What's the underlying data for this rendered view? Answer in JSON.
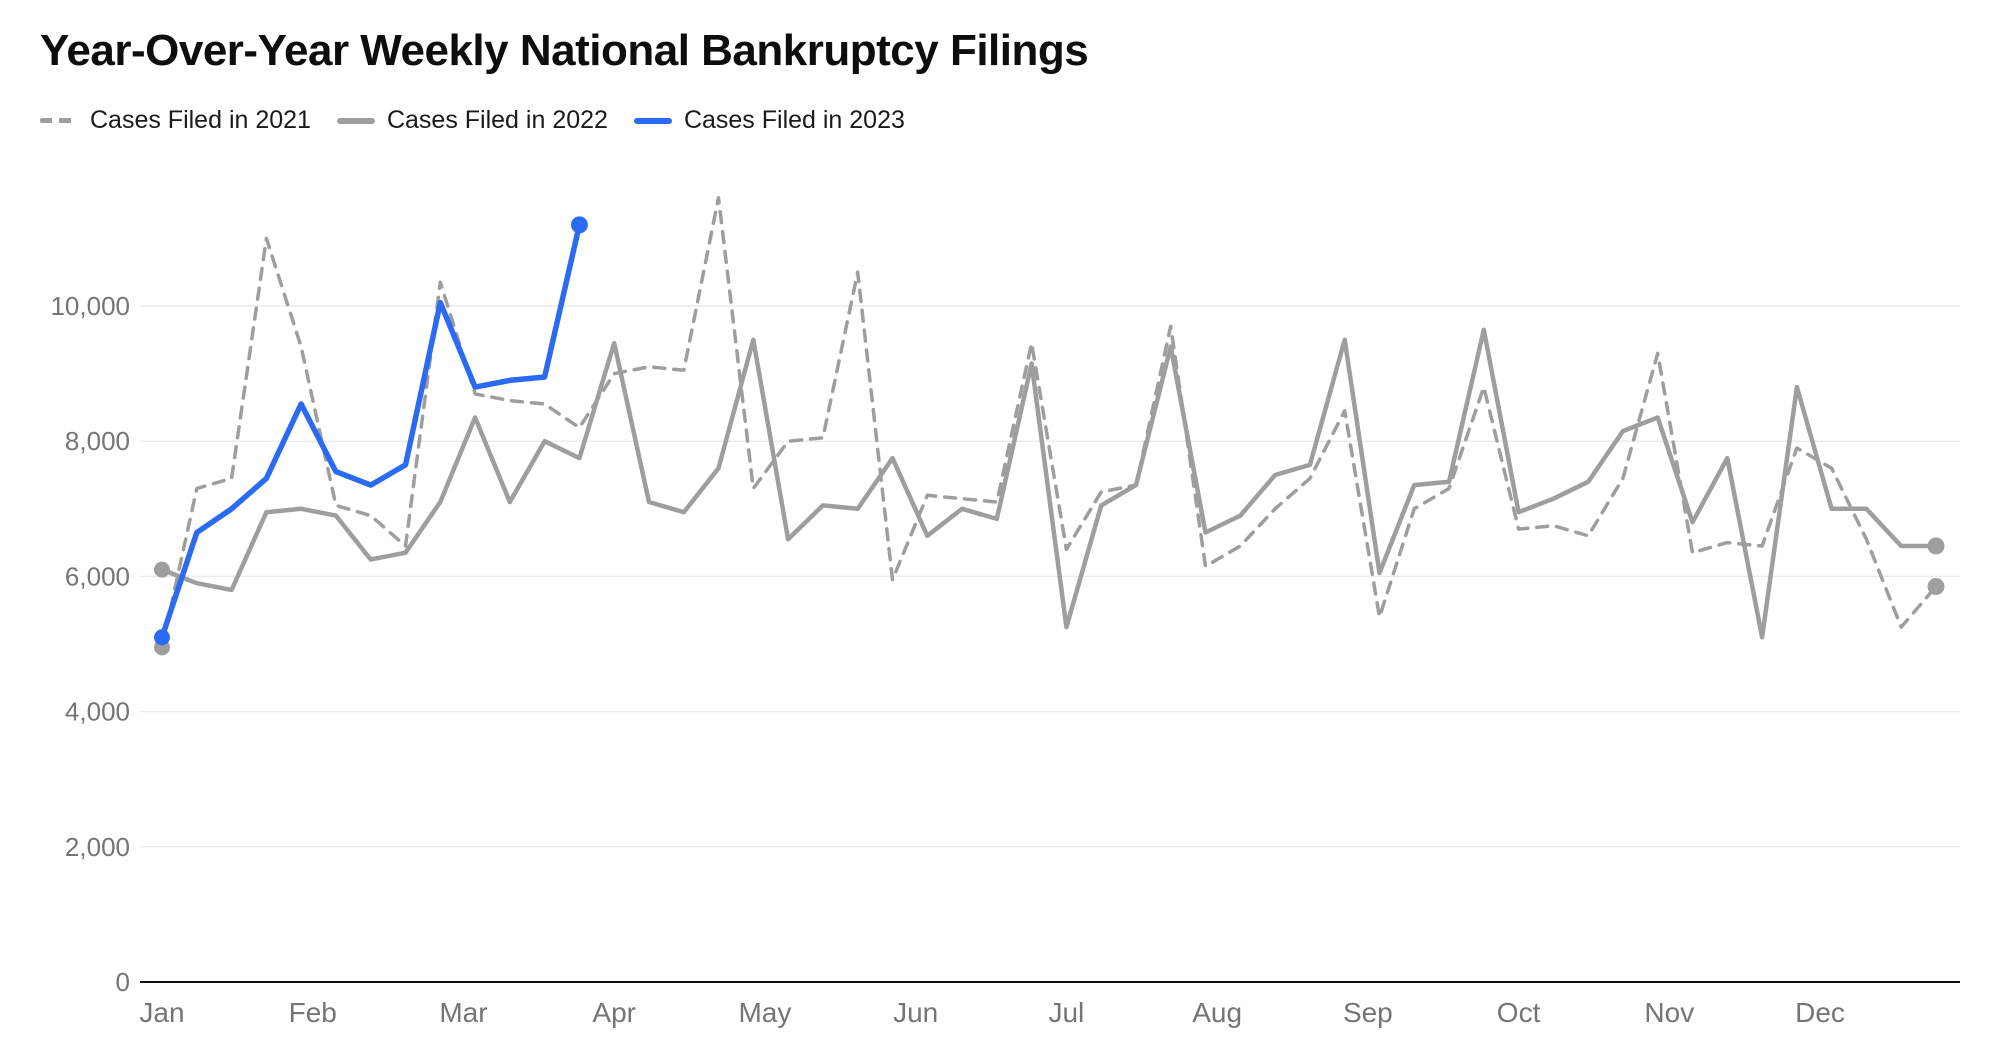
{
  "title": "Year-Over-Year Weekly National Bankruptcy Filings",
  "chart_data": {
    "type": "line",
    "title": "Year-Over-Year Weekly National Bankruptcy Filings",
    "x_unit": "week",
    "weeks": 52,
    "months": [
      "Jan",
      "Feb",
      "Mar",
      "Apr",
      "May",
      "Jun",
      "Jul",
      "Aug",
      "Sep",
      "Oct",
      "Nov",
      "Dec"
    ],
    "xlabel": "",
    "ylabel": "",
    "ylim": [
      0,
      12000
    ],
    "yticks": [
      0,
      2000,
      4000,
      6000,
      8000,
      10000
    ],
    "grid": true,
    "legend_position": "top-left",
    "axis_color": "#111111",
    "grid_color": "#ececec",
    "tick_label_color": "#757575",
    "series": [
      {
        "name": "Cases Filed in 2021",
        "line_style": "dashed",
        "color": "#9e9e9e",
        "start_marker": true,
        "end_marker": true,
        "values": [
          4950,
          7300,
          7450,
          11000,
          9400,
          7050,
          6900,
          6450,
          10350,
          8700,
          8600,
          8550,
          8200,
          9000,
          9100,
          9050,
          11600,
          7300,
          8000,
          8050,
          10500,
          5950,
          7200,
          7150,
          7100,
          9450,
          6400,
          7250,
          7350,
          9700,
          6150,
          6450,
          7000,
          7450,
          8450,
          5400,
          7000,
          7300,
          8800,
          6700,
          6750,
          6600,
          7450,
          9300,
          6350,
          6500,
          6450,
          7900,
          7600,
          6550,
          5250,
          5850
        ]
      },
      {
        "name": "Cases Filed in 2022",
        "line_style": "solid",
        "color": "#9e9e9e",
        "start_marker": true,
        "end_marker": true,
        "values": [
          6100,
          5900,
          5800,
          6950,
          7000,
          6900,
          6250,
          6350,
          7100,
          8350,
          7100,
          8000,
          7750,
          9450,
          7100,
          6950,
          7600,
          9500,
          6550,
          7050,
          7000,
          7750,
          6600,
          7000,
          6850,
          9150,
          5250,
          7050,
          7350,
          9400,
          6650,
          6900,
          7500,
          7650,
          9500,
          6050,
          7350,
          7400,
          9650,
          6950,
          7150,
          7400,
          8150,
          8350,
          6800,
          7750,
          5100,
          8800,
          7000,
          7000,
          6450,
          6450
        ]
      },
      {
        "name": "Cases Filed in 2023",
        "line_style": "solid",
        "color": "#2b6bf3",
        "start_marker": true,
        "end_marker": true,
        "values": [
          5100,
          6650,
          7000,
          7450,
          8550,
          7550,
          7350,
          7650,
          10050,
          8800,
          8900,
          8950,
          11200
        ]
      }
    ]
  }
}
